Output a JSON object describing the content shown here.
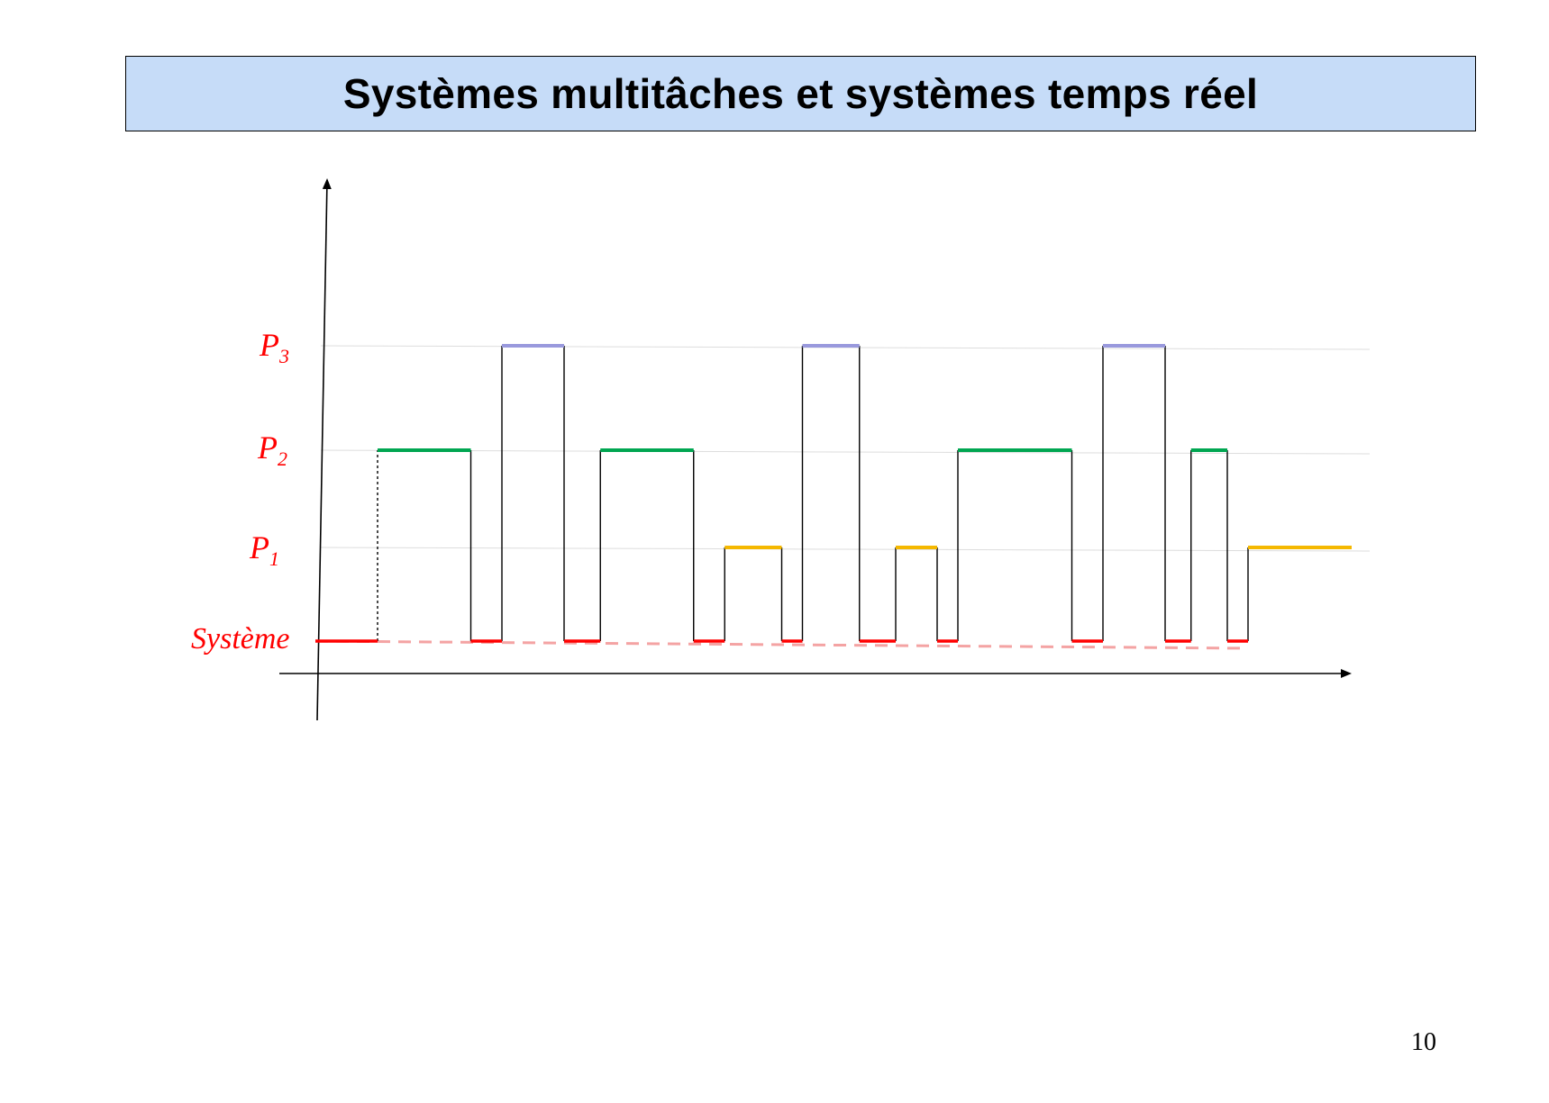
{
  "slide": {
    "title": "Systèmes multitâches et systèmes temps réel",
    "page_number": "10"
  },
  "levels": {
    "p3": {
      "base": "P",
      "sub": "3"
    },
    "p2": {
      "base": "P",
      "sub": "2"
    },
    "p1": {
      "base": "P",
      "sub": "1"
    },
    "system": "Système"
  },
  "colors": {
    "title_background": "#c6dcf8",
    "level_label": "#ff0000",
    "system": "#ff0000",
    "system_dashed": "#f4a3a3",
    "p1": "#f5b800",
    "p2": "#00a651",
    "p3": "#9999dd",
    "transition": "#000000",
    "guide": "#dddddd"
  },
  "schedule": [
    {
      "task": "system",
      "start": 0.0,
      "end": 0.6
    },
    {
      "task": "p2",
      "start": 0.6,
      "end": 1.5
    },
    {
      "task": "system",
      "start": 1.5,
      "end": 1.8
    },
    {
      "task": "p3",
      "start": 1.8,
      "end": 2.4
    },
    {
      "task": "system",
      "start": 2.4,
      "end": 2.75
    },
    {
      "task": "p2",
      "start": 2.75,
      "end": 3.65
    },
    {
      "task": "system",
      "start": 3.65,
      "end": 3.95
    },
    {
      "task": "p1",
      "start": 3.95,
      "end": 4.5
    },
    {
      "task": "system",
      "start": 4.5,
      "end": 4.7
    },
    {
      "task": "p3",
      "start": 4.7,
      "end": 5.25
    },
    {
      "task": "system",
      "start": 5.25,
      "end": 5.6
    },
    {
      "task": "p1",
      "start": 5.6,
      "end": 6.0
    },
    {
      "task": "system",
      "start": 6.0,
      "end": 6.2
    },
    {
      "task": "p2",
      "start": 6.2,
      "end": 7.3
    },
    {
      "task": "system",
      "start": 7.3,
      "end": 7.6
    },
    {
      "task": "p3",
      "start": 7.6,
      "end": 8.2
    },
    {
      "task": "system",
      "start": 8.2,
      "end": 8.45
    },
    {
      "task": "p2",
      "start": 8.45,
      "end": 8.8
    },
    {
      "task": "system",
      "start": 8.8,
      "end": 9.0
    },
    {
      "task": "p1",
      "start": 9.0,
      "end": 10.0
    }
  ]
}
